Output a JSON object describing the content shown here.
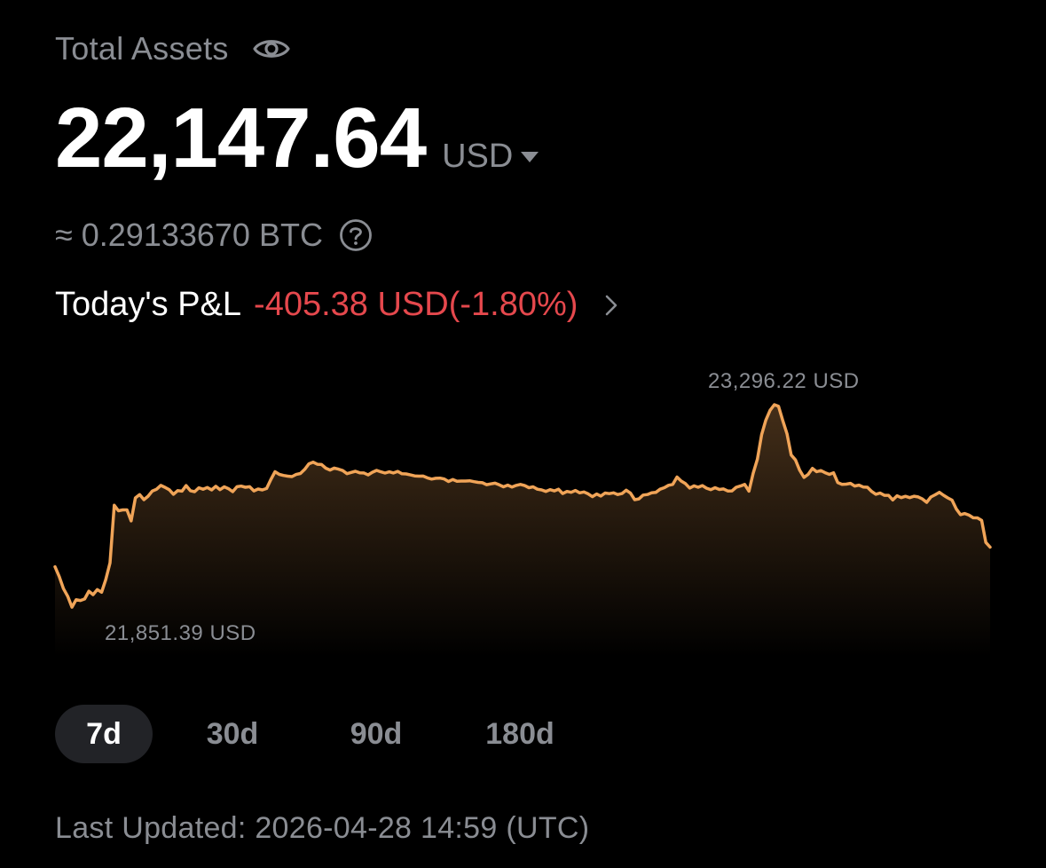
{
  "header": {
    "title": "Total Assets",
    "visibility_icon": "eye-icon"
  },
  "balance": {
    "amount": "22,147.64",
    "currency": "USD",
    "currency_dropdown_icon": "caret-down-icon"
  },
  "btc_equivalent": {
    "text": "≈ 0.29133670 BTC",
    "help_icon": "question-circle-icon"
  },
  "pnl": {
    "label": "Today's P&L",
    "value": "-405.38 USD(-1.80%)",
    "chevron_icon": "chevron-right-icon"
  },
  "colors": {
    "background": "#000000",
    "primary_text": "#ffffff",
    "secondary_text": "#8a8d93",
    "negative": "#e5484d",
    "chart_line": "#f0a458",
    "active_tab_bg": "#222327"
  },
  "chart_data": {
    "type": "area",
    "y_unit": "USD",
    "max_label": "23,296.22 USD",
    "min_label": "21,851.39 USD",
    "max": 23296.22,
    "min": 21851.39,
    "values": [
      22139,
      22069,
      21983,
      21929,
      21851,
      21904,
      21898,
      21909,
      21965,
      21940,
      21976,
      21957,
      22047,
      22167,
      22578,
      22539,
      22545,
      22545,
      22467,
      22631,
      22654,
      22618,
      22643,
      22680,
      22693,
      22720,
      22706,
      22689,
      22657,
      22683,
      22679,
      22719,
      22682,
      22675,
      22703,
      22693,
      22705,
      22688,
      22714,
      22690,
      22710,
      22697,
      22675,
      22711,
      22715,
      22707,
      22711,
      22681,
      22694,
      22688,
      22698,
      22761,
      22818,
      22799,
      22791,
      22786,
      22783,
      22798,
      22805,
      22834,
      22874,
      22886,
      22871,
      22869,
      22843,
      22830,
      22844,
      22836,
      22826,
      22804,
      22813,
      22821,
      22810,
      22809,
      22795,
      22814,
      22827,
      22817,
      22808,
      22817,
      22809,
      22820,
      22803,
      22802,
      22795,
      22788,
      22786,
      22787,
      22774,
      22765,
      22771,
      22772,
      22766,
      22748,
      22762,
      22750,
      22751,
      22751,
      22753,
      22747,
      22742,
      22739,
      22725,
      22731,
      22736,
      22724,
      22710,
      22722,
      22708,
      22720,
      22727,
      22719,
      22704,
      22710,
      22693,
      22688,
      22677,
      22690,
      22681,
      22693,
      22662,
      22677,
      22671,
      22684,
      22667,
      22673,
      22660,
      22640,
      22659,
      22644,
      22666,
      22661,
      22667,
      22655,
      22662,
      22686,
      22665,
      22618,
      22624,
      22651,
      22655,
      22667,
      22670,
      22693,
      22704,
      22721,
      22727,
      22780,
      22751,
      22733,
      22701,
      22717,
      22707,
      22719,
      22700,
      22690,
      22704,
      22691,
      22695,
      22680,
      22681,
      22707,
      22716,
      22727,
      22679,
      22806,
      22907,
      23083,
      23186,
      23256,
      23296,
      23285,
      23183,
      23088,
      22937,
      22902,
      22828,
      22777,
      22799,
      22842,
      22818,
      22826,
      22811,
      22799,
      22810,
      22740,
      22727,
      22729,
      22735,
      22716,
      22722,
      22709,
      22707,
      22677,
      22657,
      22666,
      22649,
      22649,
      22616,
      22646,
      22633,
      22642,
      22633,
      22643,
      22638,
      22623,
      22599,
      22637,
      22653,
      22671,
      22650,
      22631,
      22615,
      22553,
      22511,
      22519,
      22508,
      22489,
      22488,
      22470,
      22313,
      22279
    ]
  },
  "range_tabs": [
    {
      "label": "7d",
      "active": true
    },
    {
      "label": "30d",
      "active": false
    },
    {
      "label": "90d",
      "active": false
    },
    {
      "label": "180d",
      "active": false
    }
  ],
  "footer": {
    "last_updated": "Last Updated: 2026-04-28 14:59 (UTC)"
  }
}
